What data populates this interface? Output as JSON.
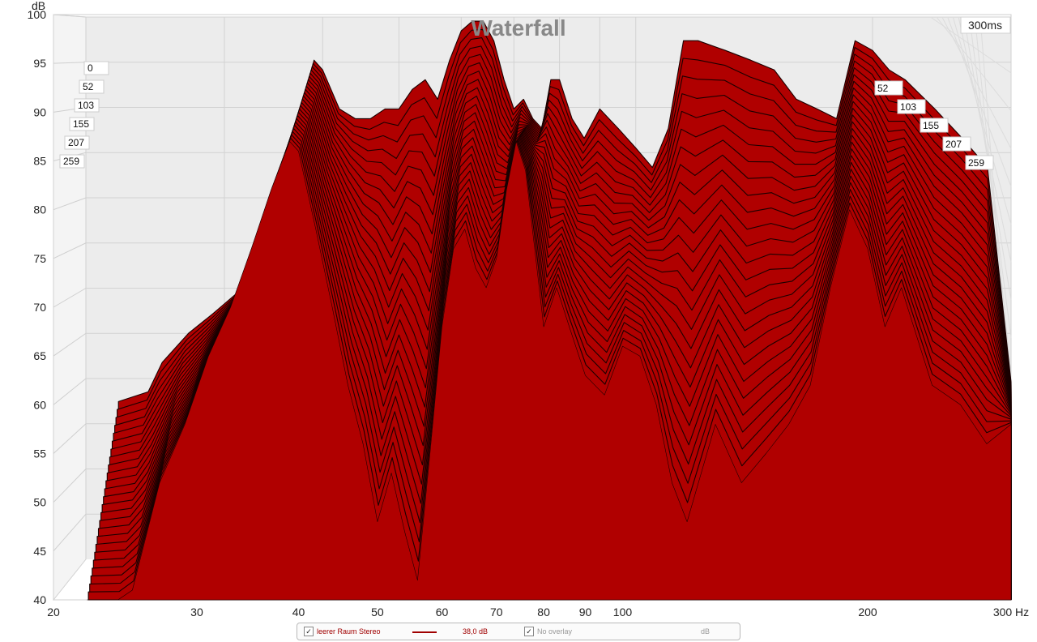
{
  "chart_data": {
    "type": "area",
    "title": "Waterfall",
    "time_corner_label": "300ms",
    "ylabel": "dB",
    "xlabel_unit": "Hz",
    "x_scale": "log",
    "xlim": [
      20,
      300
    ],
    "ylim": [
      40,
      100
    ],
    "x_ticks": [
      "20",
      "30",
      "40",
      "50",
      "60",
      "70",
      "80",
      "90",
      "100",
      "200",
      "300 Hz"
    ],
    "y_ticks": [
      "40",
      "45",
      "50",
      "55",
      "60",
      "65",
      "70",
      "75",
      "80",
      "85",
      "90",
      "95",
      "100"
    ],
    "time_slices_ms": [
      "0",
      "52",
      "103",
      "155",
      "207",
      "259"
    ],
    "time_slices_right_ms": [
      "52",
      "103",
      "155",
      "207",
      "259"
    ],
    "fill_color": "#b00000",
    "line_color": "#1a0000",
    "front_curve": {
      "freq_hz": [
        22,
        24,
        25,
        27,
        29,
        31,
        33,
        35,
        37,
        39,
        40,
        42,
        44,
        46,
        48,
        50,
        52,
        54,
        56,
        58,
        60,
        62,
        64,
        66,
        68,
        70,
        72,
        74,
        76,
        78,
        80,
        83,
        86,
        90,
        95,
        100,
        105,
        110,
        115,
        120,
        130,
        140,
        150,
        160,
        170,
        180,
        190,
        200,
        210,
        220,
        240,
        260,
        280,
        300
      ],
      "db": [
        40,
        40,
        41,
        52,
        58,
        65,
        70,
        76,
        82,
        87,
        86,
        78,
        70,
        62,
        56,
        48,
        53,
        47,
        42,
        55,
        68,
        76,
        78,
        74,
        72,
        75,
        82,
        87,
        84,
        76,
        68,
        72,
        68,
        63,
        61,
        66,
        65,
        60,
        52,
        48,
        58,
        52,
        55,
        58,
        62,
        72,
        80,
        76,
        68,
        72,
        62,
        60,
        56,
        58
      ]
    },
    "back_curve": {
      "freq_hz": [
        22,
        24,
        25,
        27,
        29,
        31,
        33,
        35,
        37,
        39,
        40,
        42,
        44,
        46,
        48,
        50,
        52,
        54,
        56,
        58,
        60,
        62,
        64,
        66,
        68,
        70,
        72,
        74,
        76,
        78,
        80,
        83,
        86,
        90,
        95,
        100,
        105,
        110,
        115,
        120,
        130,
        140,
        150,
        160,
        170,
        180,
        190,
        200,
        210,
        220,
        240,
        260,
        280,
        300
      ],
      "db": [
        58,
        59,
        62,
        65,
        67,
        69,
        72,
        79,
        85,
        93,
        92,
        88,
        87,
        87,
        88,
        88,
        90,
        91,
        89,
        93,
        96,
        97,
        97,
        95,
        91,
        88,
        89,
        87,
        86,
        91,
        91,
        87,
        85,
        88,
        86,
        84,
        82,
        86,
        95,
        95,
        94,
        93,
        92,
        89,
        88,
        87,
        95,
        94,
        92,
        91,
        88,
        85,
        82,
        60
      ]
    }
  },
  "legend": {
    "series_checked": true,
    "series_label": "leerer Raum Stereo",
    "series_value": "38,0 dB",
    "overlay_checked": true,
    "overlay_label": "No overlay",
    "overlay_unit": "dB"
  }
}
